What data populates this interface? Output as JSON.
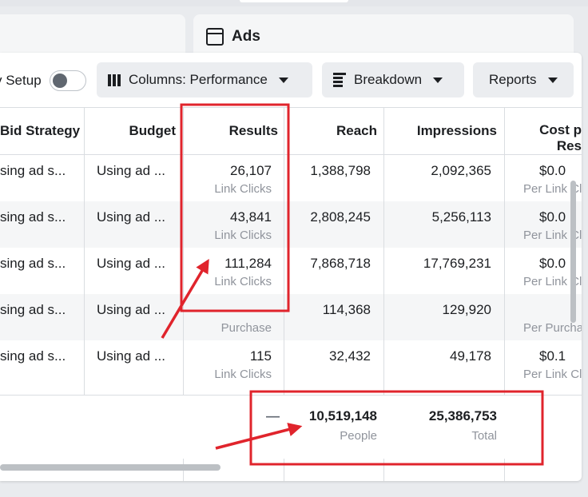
{
  "ads_tab": {
    "title": "Ads"
  },
  "toolbar": {
    "setup_label": "v Setup",
    "columns_label": "Columns: Performance",
    "breakdown_label": "Breakdown",
    "reports_label": "Reports"
  },
  "table": {
    "headers": {
      "bid_strategy": "Bid Strategy",
      "budget": "Budget",
      "results": "Results",
      "reach": "Reach",
      "impressions": "Impressions",
      "cost_line1": "Cost p",
      "cost_line2": "Res"
    },
    "rows": [
      {
        "bid": "sing ad s...",
        "budget": "Using ad ...",
        "results": "26,107",
        "results_sub": "Link Clicks",
        "reach": "1,388,798",
        "impressions": "2,092,365",
        "cost": "$0.0",
        "cost_sub": "Per Link Cli"
      },
      {
        "bid": "sing ad s...",
        "budget": "Using ad ...",
        "results": "43,841",
        "results_sub": "Link Clicks",
        "reach": "2,808,245",
        "impressions": "5,256,113",
        "cost": "$0.0",
        "cost_sub": "Per Link Cli"
      },
      {
        "bid": "sing ad s...",
        "budget": "Using ad ...",
        "results": "111,284",
        "results_sub": "Link Clicks",
        "reach": "7,868,718",
        "impressions": "17,769,231",
        "cost": "$0.0",
        "cost_sub": "Per Link Cli"
      },
      {
        "bid": "sing ad s...",
        "budget": "Using ad ...",
        "results": "—",
        "results_sub": "Purchase",
        "reach": "114,368",
        "impressions": "129,920",
        "cost": "",
        "cost_sub": "Per Purcha"
      },
      {
        "bid": "sing ad s...",
        "budget": "Using ad ...",
        "results": "115",
        "results_sub": "Link Clicks",
        "reach": "32,432",
        "impressions": "49,178",
        "cost": "$0.1",
        "cost_sub": "Per Link Cli"
      }
    ],
    "totals": {
      "results": "—",
      "reach": "10,519,148",
      "reach_sub": "People",
      "impressions": "25,386,753",
      "impressions_sub": "Total"
    }
  },
  "colors": {
    "annotation_red": "#e0242c",
    "divider": "#dadde1",
    "row_alt": "#f5f6f7",
    "muted_text": "#90949c"
  }
}
